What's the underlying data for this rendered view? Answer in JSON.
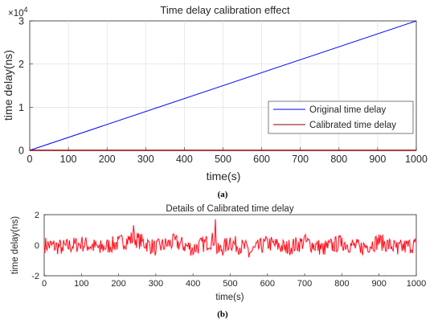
{
  "chart_data": [
    {
      "type": "line",
      "title": "Time delay calibration effect",
      "xlabel": "time(s)",
      "ylabel": "time delay(ns)",
      "exponent_label": "×10",
      "exponent_power": "4",
      "xlim": [
        0,
        1000
      ],
      "ylim": [
        0,
        30000
      ],
      "x_ticks": [
        0,
        100,
        200,
        300,
        400,
        500,
        600,
        700,
        800,
        900,
        1000
      ],
      "y_ticks": [
        0,
        10000,
        20000,
        30000
      ],
      "y_tick_labels": [
        "0",
        "1",
        "2",
        "3"
      ],
      "grid": true,
      "legend_position": "bottom-right",
      "series": [
        {
          "name": "Original time delay",
          "color": "#0000ff",
          "x": [
            0,
            1000
          ],
          "values": [
            0,
            30000
          ]
        },
        {
          "name": "Calibrated time delay",
          "color": "#8b0000",
          "x": [
            0,
            1000
          ],
          "values": [
            0,
            0
          ]
        }
      ],
      "caption": "(a)"
    },
    {
      "type": "line",
      "title": "Details of Calibrated time delay",
      "xlabel": "time(s)",
      "ylabel": "time delay(ns)",
      "xlim": [
        0,
        1000
      ],
      "ylim": [
        -2,
        2
      ],
      "x_ticks": [
        0,
        100,
        200,
        300,
        400,
        500,
        600,
        700,
        800,
        900,
        1000
      ],
      "y_ticks": [
        -2,
        0,
        2
      ],
      "grid": false,
      "series": [
        {
          "color": "#ff0000",
          "description_points": "dense noise around 0, amplitude about ±0.6 ns, spikes up to +1.7 near t=460 and down to -1.3 near t=465",
          "x": [
            0,
            50,
            100,
            150,
            200,
            240,
            300,
            350,
            400,
            455,
            460,
            465,
            500,
            550,
            555,
            600,
            650,
            700,
            750,
            800,
            850,
            900,
            950,
            1000
          ],
          "values": [
            0.1,
            -0.4,
            0.3,
            -0.5,
            0.4,
            1.3,
            -0.5,
            0.6,
            -0.6,
            1.0,
            1.7,
            -1.3,
            0.5,
            -0.8,
            -1.2,
            0.4,
            -0.5,
            0.6,
            -0.6,
            0.5,
            -0.5,
            0.7,
            -0.6,
            0.2
          ]
        }
      ],
      "caption": "(b)"
    }
  ]
}
